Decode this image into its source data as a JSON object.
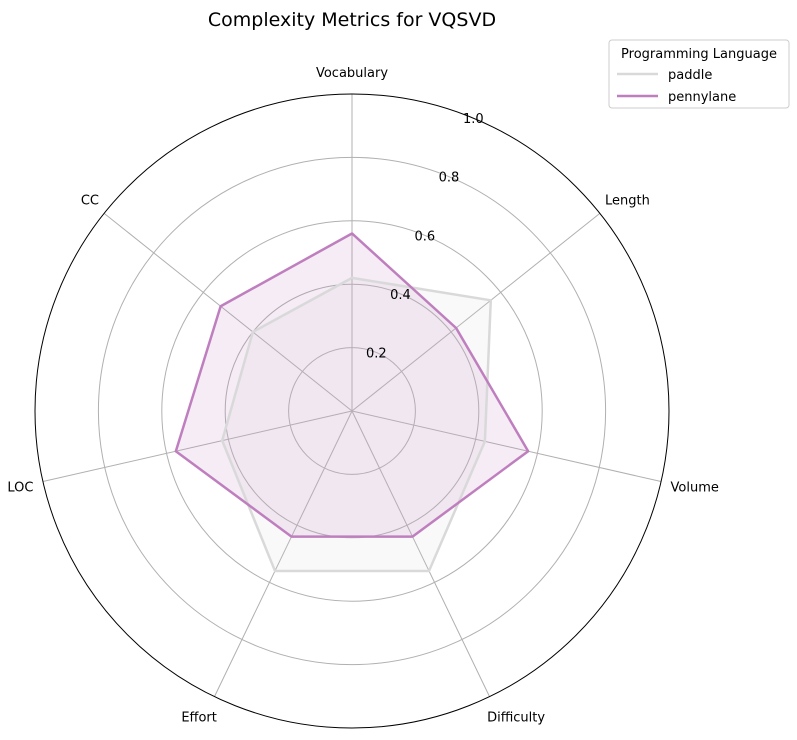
{
  "chart_data": {
    "type": "radar",
    "title": "Complexity Metrics for VQSVD",
    "axes": [
      "Vocabulary",
      "Length",
      "Volume",
      "Difficulty",
      "Effort",
      "LOC",
      "CC"
    ],
    "rlim": [
      0,
      1.0
    ],
    "ticks": [
      0.2,
      0.4,
      0.6,
      0.8,
      1.0
    ],
    "tick_labels": [
      "0.2",
      "0.4",
      "0.6",
      "0.8",
      "1.0"
    ],
    "grid": true,
    "legend": {
      "title": "Programming Language",
      "placement": "top-right"
    },
    "series": [
      {
        "name": "paddle",
        "color": "#d9d9d9",
        "fill": "#d9d9d9",
        "values": [
          0.42,
          0.56,
          0.43,
          0.56,
          0.56,
          0.42,
          0.4
        ]
      },
      {
        "name": "pennylane",
        "color": "#bf7fbf",
        "fill": "#bf7fbf",
        "values": [
          0.56,
          0.42,
          0.57,
          0.44,
          0.44,
          0.57,
          0.53
        ]
      }
    ]
  }
}
